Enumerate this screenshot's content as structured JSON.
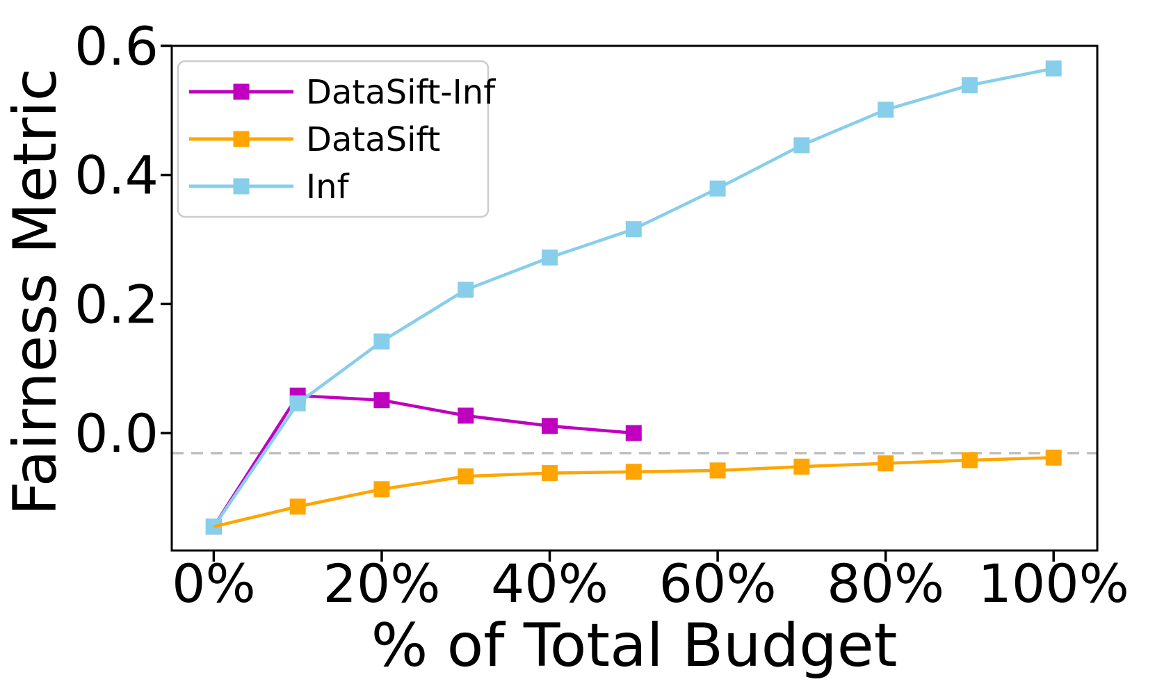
{
  "figure": {
    "background": "#FFFFFF"
  },
  "chart_data": {
    "type": "line",
    "title": "",
    "xlabel": "% of Total Budget",
    "ylabel": "Fairness Metric",
    "x_ticks": [
      "0%",
      "20%",
      "40%",
      "60%",
      "80%",
      "100%"
    ],
    "x_tick_values": [
      0,
      20,
      40,
      60,
      80,
      100
    ],
    "y_ticks": [
      "0.0",
      "0.2",
      "0.4",
      "0.6"
    ],
    "y_tick_values": [
      0.0,
      0.2,
      0.4,
      0.6
    ],
    "xlim": [
      -5,
      105.2
    ],
    "ylim": [
      -0.182,
      0.6
    ],
    "grid": false,
    "legend_position": "upper left",
    "reference_line": {
      "y": -0.031,
      "style": "dashed",
      "color": "#BFBFBF"
    },
    "draw_order": [
      "DataSift-Inf",
      "Inf",
      "DataSift"
    ],
    "series": [
      {
        "name": "DataSift-Inf",
        "color": "#BF00BF",
        "marker": "square",
        "x": [
          0,
          10,
          20,
          30,
          40,
          50
        ],
        "values": [
          -0.145,
          0.058,
          0.051,
          0.027,
          0.011,
          0.0
        ]
      },
      {
        "name": "DataSift",
        "color": "#FFA500",
        "marker": "square",
        "hidden_markers": [
          0
        ],
        "x": [
          0,
          10,
          20,
          30,
          40,
          50,
          60,
          70,
          80,
          90,
          100
        ],
        "values": [
          -0.145,
          -0.114,
          -0.087,
          -0.067,
          -0.062,
          -0.06,
          -0.058,
          -0.052,
          -0.047,
          -0.042,
          -0.038
        ]
      },
      {
        "name": "Inf",
        "color": "#87CEEB",
        "marker": "square",
        "x": [
          0,
          10,
          20,
          30,
          40,
          50,
          60,
          70,
          80,
          90,
          100
        ],
        "values": [
          -0.145,
          0.046,
          0.142,
          0.222,
          0.272,
          0.316,
          0.379,
          0.446,
          0.501,
          0.539,
          0.565
        ]
      }
    ]
  },
  "legend": {
    "entries": [
      {
        "label": "DataSift-Inf",
        "color": "#BF00BF"
      },
      {
        "label": "DataSift",
        "color": "#FFA500"
      },
      {
        "label": "Inf",
        "color": "#87CEEB"
      }
    ]
  }
}
